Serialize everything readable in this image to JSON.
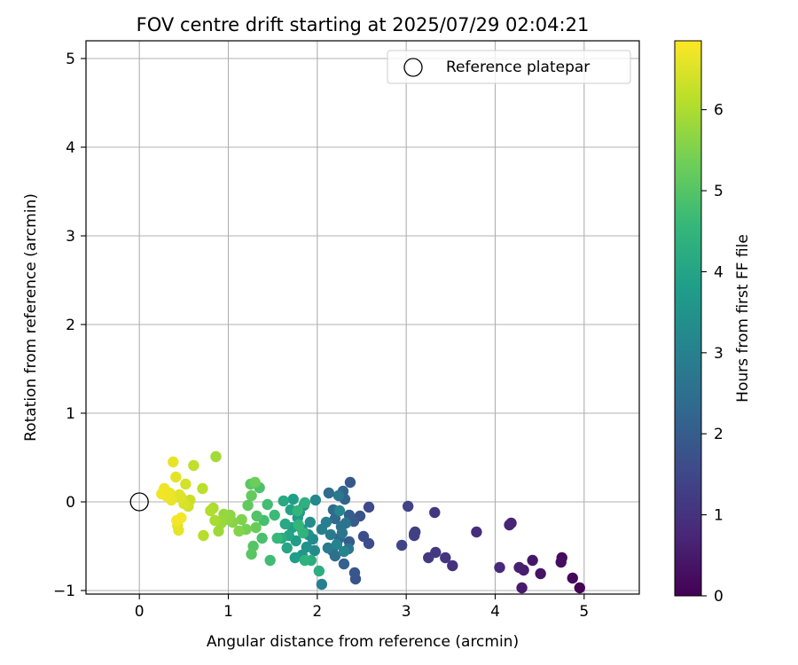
{
  "chart_data": {
    "type": "scatter",
    "title": "FOV centre drift starting at 2025/07/29 02:04:21",
    "xlabel": "Angular distance from reference (arcmin)",
    "ylabel": "Rotation from reference (arcmin)",
    "xlim": [
      -0.6,
      5.62
    ],
    "ylim": [
      -1.04,
      5.2
    ],
    "xticks": [
      0,
      1,
      2,
      3,
      4,
      5
    ],
    "yticks": [
      -1,
      0,
      1,
      2,
      3,
      4,
      5
    ],
    "grid": true,
    "legend": {
      "position": "top-right",
      "entries": [
        "Reference platepar"
      ]
    },
    "reference_point": {
      "x": 0,
      "y": 0,
      "label": "Reference platepar"
    },
    "colorbar": {
      "label": "Hours from first FF file",
      "range": [
        0,
        6.85
      ],
      "ticks": [
        0,
        1,
        2,
        3,
        4,
        5,
        6
      ],
      "colormap": "viridis"
    },
    "points": [
      [
        4.95,
        -0.97,
        0.03
      ],
      [
        4.87,
        -0.86,
        0.12
      ],
      [
        4.75,
        -0.63,
        0.2
      ],
      [
        4.74,
        -0.68,
        0.25
      ],
      [
        4.51,
        -0.81,
        0.35
      ],
      [
        4.42,
        -0.66,
        0.42
      ],
      [
        4.3,
        -0.97,
        0.5
      ],
      [
        4.32,
        -0.77,
        0.55
      ],
      [
        4.27,
        -0.74,
        0.6
      ],
      [
        4.18,
        -0.24,
        0.68
      ],
      [
        4.16,
        -0.26,
        0.72
      ],
      [
        4.05,
        -0.74,
        0.8
      ],
      [
        3.79,
        -0.34,
        0.9
      ],
      [
        3.52,
        -0.72,
        1.0
      ],
      [
        3.44,
        -0.63,
        1.05
      ],
      [
        3.32,
        -0.12,
        1.1
      ],
      [
        3.33,
        -0.57,
        1.15
      ],
      [
        3.25,
        -0.63,
        1.2
      ],
      [
        3.1,
        -0.34,
        1.25
      ],
      [
        3.09,
        -0.36,
        1.3
      ],
      [
        3.09,
        -0.38,
        1.32
      ],
      [
        3.02,
        -0.05,
        1.38
      ],
      [
        2.95,
        -0.49,
        1.45
      ],
      [
        2.58,
        -0.06,
        1.55
      ],
      [
        2.58,
        -0.47,
        1.6
      ],
      [
        2.52,
        -0.39,
        1.65
      ],
      [
        2.48,
        -0.16,
        1.75
      ],
      [
        2.43,
        -0.87,
        1.8
      ],
      [
        2.42,
        -0.8,
        1.85
      ],
      [
        2.37,
        0.22,
        1.9
      ],
      [
        2.41,
        -0.22,
        1.95
      ],
      [
        2.36,
        -0.45,
        2.0
      ],
      [
        2.36,
        -0.15,
        2.05
      ],
      [
        2.3,
        -0.7,
        2.1
      ],
      [
        2.31,
        0.03,
        2.15
      ],
      [
        2.29,
        0.12,
        2.2
      ],
      [
        2.25,
        -0.41,
        2.25
      ],
      [
        2.2,
        -0.19,
        2.3
      ],
      [
        2.18,
        -0.09,
        2.35
      ],
      [
        2.13,
        0.1,
        2.4
      ],
      [
        2.17,
        -0.55,
        2.45
      ],
      [
        2.2,
        -0.61,
        2.5
      ],
      [
        2.27,
        -0.28,
        2.55
      ],
      [
        2.32,
        -0.24,
        2.6
      ],
      [
        2.35,
        -0.53,
        2.65
      ],
      [
        2.28,
        -0.35,
        2.7
      ],
      [
        2.24,
        0.07,
        2.75
      ],
      [
        2.15,
        -0.37,
        2.8
      ],
      [
        2.12,
        -0.52,
        2.85
      ],
      [
        2.1,
        -0.23,
        2.9
      ],
      [
        2.05,
        -0.31,
        2.95
      ],
      [
        2.05,
        -0.93,
        3.0
      ],
      [
        2.22,
        -0.48,
        3.05
      ],
      [
        2.3,
        -0.56,
        3.1
      ],
      [
        2.25,
        -0.1,
        3.15
      ],
      [
        1.98,
        0.02,
        3.2
      ],
      [
        1.95,
        -0.42,
        3.25
      ],
      [
        1.97,
        -0.55,
        3.3
      ],
      [
        1.92,
        -0.23,
        3.35
      ],
      [
        1.9,
        -0.37,
        3.4
      ],
      [
        1.88,
        -0.51,
        3.45
      ],
      [
        1.85,
        -0.04,
        3.5
      ],
      [
        1.83,
        -0.31,
        3.55
      ],
      [
        1.83,
        -0.6,
        3.6
      ],
      [
        1.8,
        -0.12,
        3.65
      ],
      [
        1.78,
        -0.18,
        3.7
      ],
      [
        1.76,
        -0.44,
        3.75
      ],
      [
        1.75,
        -0.63,
        3.8
      ],
      [
        1.73,
        0.03,
        3.85
      ],
      [
        1.72,
        -0.29,
        3.9
      ],
      [
        1.7,
        -0.09,
        3.95
      ],
      [
        1.68,
        -0.38,
        4.0
      ],
      [
        1.66,
        -0.52,
        4.05
      ],
      [
        1.64,
        -0.25,
        4.1
      ],
      [
        1.62,
        0.01,
        4.15
      ],
      [
        1.6,
        -0.41,
        4.2
      ],
      [
        1.93,
        -0.66,
        4.25
      ],
      [
        2.02,
        -0.78,
        4.3
      ],
      [
        1.86,
        -0.01,
        4.35
      ],
      [
        1.86,
        -0.66,
        4.4
      ],
      [
        1.84,
        -0.35,
        4.45
      ],
      [
        1.78,
        -0.1,
        4.5
      ],
      [
        1.79,
        -0.26,
        4.55
      ],
      [
        1.55,
        -0.41,
        4.6
      ],
      [
        1.52,
        -0.15,
        4.65
      ],
      [
        1.47,
        -0.66,
        4.7
      ],
      [
        1.44,
        -0.03,
        4.75
      ],
      [
        1.4,
        -0.21,
        4.8
      ],
      [
        1.38,
        -0.41,
        4.85
      ],
      [
        1.35,
        0.16,
        4.9
      ],
      [
        1.32,
        -0.16,
        4.95
      ],
      [
        1.28,
        -0.5,
        5.0
      ],
      [
        1.26,
        -0.59,
        5.05
      ],
      [
        1.25,
        0.2,
        5.1
      ],
      [
        1.22,
        -0.04,
        5.15
      ],
      [
        1.26,
        0.07,
        5.2
      ],
      [
        1.31,
        -0.29,
        5.25
      ],
      [
        1.3,
        0.22,
        5.3
      ],
      [
        1.2,
        -0.31,
        5.4
      ],
      [
        1.15,
        -0.2,
        5.5
      ],
      [
        1.12,
        -0.33,
        5.55
      ],
      [
        1.05,
        -0.23,
        5.6
      ],
      [
        1.02,
        -0.15,
        5.65
      ],
      [
        1.0,
        -0.2,
        5.7
      ],
      [
        0.95,
        -0.14,
        5.75
      ],
      [
        0.92,
        -0.24,
        5.8
      ],
      [
        0.89,
        -0.33,
        5.85
      ],
      [
        0.86,
        0.51,
        5.9
      ],
      [
        0.85,
        -0.21,
        5.95
      ],
      [
        0.83,
        -0.07,
        6.0
      ],
      [
        0.8,
        -0.1,
        6.05
      ],
      [
        0.72,
        -0.38,
        6.1
      ],
      [
        0.71,
        0.15,
        6.15
      ],
      [
        0.61,
        0.41,
        6.2
      ],
      [
        0.57,
        0.02,
        6.3
      ],
      [
        0.55,
        -0.05,
        6.35
      ],
      [
        0.52,
        0.2,
        6.4
      ],
      [
        0.5,
        -0.02,
        6.45
      ],
      [
        0.47,
        0.05,
        6.5
      ],
      [
        0.45,
        0.08,
        6.52
      ],
      [
        0.43,
        -0.27,
        6.55
      ],
      [
        0.41,
        0.28,
        6.58
      ],
      [
        0.44,
        -0.32,
        6.6
      ],
      [
        0.38,
        0.45,
        6.62
      ],
      [
        0.36,
        0.02,
        6.64
      ],
      [
        0.34,
        0.1,
        6.66
      ],
      [
        0.3,
        0.07,
        6.68
      ],
      [
        0.28,
        0.15,
        6.7
      ],
      [
        0.25,
        0.09,
        6.72
      ],
      [
        0.42,
        -0.21,
        6.74
      ],
      [
        0.47,
        -0.18,
        6.76
      ]
    ]
  }
}
